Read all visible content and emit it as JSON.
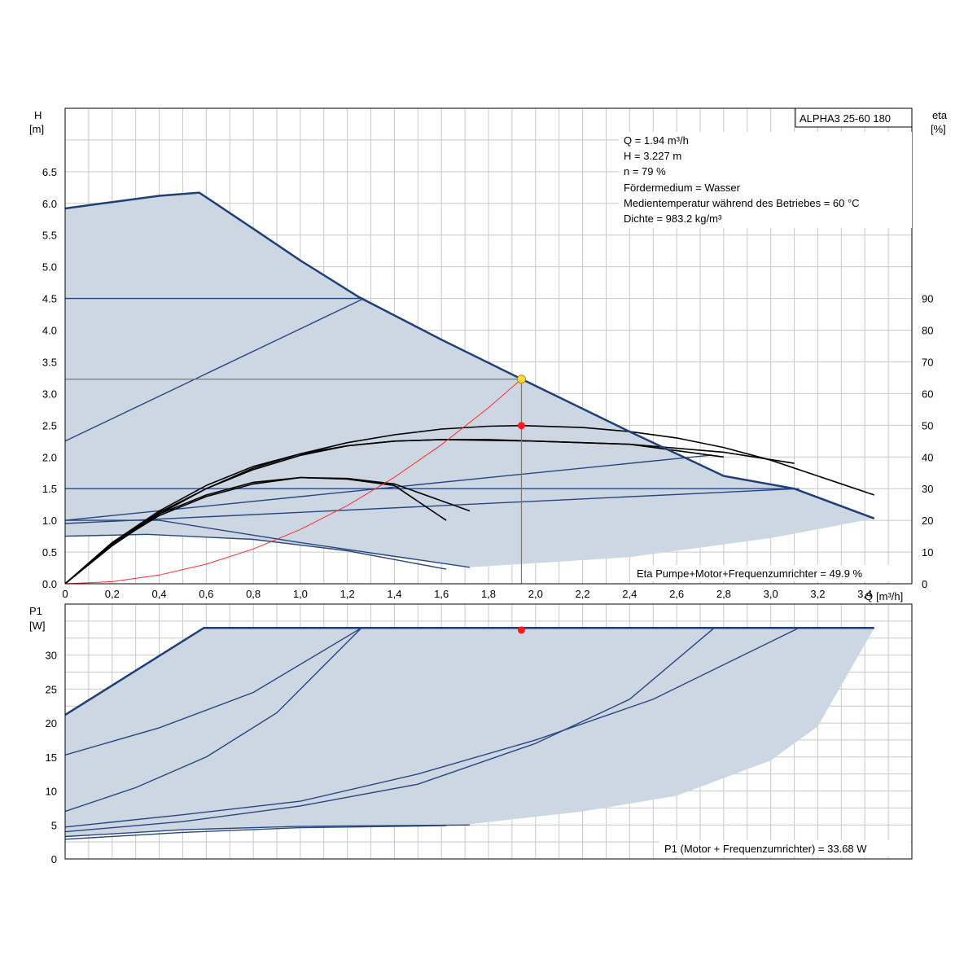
{
  "chart_data": [
    {
      "type": "line",
      "title": "",
      "model_label": "ALPHA3 25-60 180",
      "ylabel": "H",
      "yunit": "[m]",
      "y2label": "eta",
      "y2unit": "[%]",
      "xlabel": "Q",
      "xunit": "[m³/h]",
      "xlim": [
        0,
        3.6
      ],
      "ylim": [
        0,
        7.5
      ],
      "y2lim": [
        0,
        150
      ],
      "x_ticks": [
        "0",
        "0,2",
        "0,4",
        "0,6",
        "0,8",
        "1,0",
        "1,2",
        "1,4",
        "1,6",
        "1,8",
        "2,0",
        "2,2",
        "2,4",
        "2,6",
        "2,8",
        "3,0",
        "3,2",
        "3,4"
      ],
      "y_ticks": [
        "0.0",
        "0.5",
        "1.0",
        "1.5",
        "2.0",
        "2.5",
        "3.0",
        "3.5",
        "4.0",
        "4.5",
        "5.0",
        "5.5",
        "6.0",
        "6.5"
      ],
      "y2_ticks": [
        "0",
        "10",
        "20",
        "30",
        "40",
        "50",
        "60",
        "70",
        "80",
        "90"
      ],
      "grid": true,
      "info_lines": [
        "Q = 1.94 m³/h",
        "H = 3.227 m",
        "n = 79 %",
        "Fördermedium = Wasser",
        "Medientemperatur während des Betriebes = 60 °C",
        "Dichte = 983.2 kg/m³"
      ],
      "footer_text": "Eta Pumpe+Motor+Frequenzumrichter = 49.9 %",
      "operating_point": {
        "x": 1.94,
        "y": 3.227
      },
      "eta_point": {
        "x": 1.94,
        "eta": 49.9
      },
      "envelope": {
        "max_curve": [
          [
            0,
            5.92
          ],
          [
            0.2,
            6.02
          ],
          [
            0.4,
            6.12
          ],
          [
            0.57,
            6.17
          ],
          [
            0.8,
            5.6
          ],
          [
            1.0,
            5.1
          ],
          [
            1.25,
            4.52
          ],
          [
            1.6,
            3.85
          ],
          [
            1.94,
            3.23
          ],
          [
            2.4,
            2.4
          ],
          [
            2.8,
            1.7
          ],
          [
            3.1,
            1.5
          ],
          [
            3.44,
            1.03
          ]
        ],
        "min_curve": [
          [
            0,
            0.75
          ],
          [
            0.35,
            0.78
          ],
          [
            0.8,
            0.7
          ],
          [
            1.2,
            0.52
          ],
          [
            1.72,
            0.26
          ],
          [
            2.4,
            0.42
          ],
          [
            3.0,
            0.72
          ],
          [
            3.44,
            1.03
          ]
        ]
      },
      "series": [
        {
          "name": "",
          "role": "constant-pressure-max",
          "values": [
            [
              0,
              4.5
            ],
            [
              1.27,
              4.5
            ]
          ]
        },
        {
          "name": "",
          "role": "proportional-pressure-max",
          "values": [
            [
              0,
              2.25
            ],
            [
              1.27,
              4.5
            ]
          ]
        },
        {
          "name": "",
          "role": "constant-pressure-min",
          "values": [
            [
              0,
              1.5
            ],
            [
              3.12,
              1.5
            ]
          ]
        },
        {
          "name": "",
          "role": "proportional-pressure-mid",
          "values": [
            [
              0,
              1.0
            ],
            [
              2.75,
              2.03
            ]
          ]
        },
        {
          "name": "",
          "role": "proportional-pressure-low",
          "values": [
            [
              0,
              0.95
            ],
            [
              3.12,
              1.5
            ]
          ]
        },
        {
          "name": "",
          "role": "min-curve-a",
          "values": [
            [
              0,
              1.0
            ],
            [
              0.4,
              1.0
            ],
            [
              1.0,
              0.65
            ],
            [
              1.72,
              0.26
            ]
          ]
        },
        {
          "name": "",
          "role": "min-curve-b",
          "values": [
            [
              0,
              0.75
            ],
            [
              0.35,
              0.78
            ],
            [
              0.8,
              0.7
            ],
            [
              1.2,
              0.52
            ],
            [
              1.62,
              0.23
            ]
          ]
        },
        {
          "name": "",
          "role": "eta-max",
          "values": [
            [
              0,
              0
            ],
            [
              0.2,
              12
            ],
            [
              0.4,
              22
            ],
            [
              0.6,
              30
            ],
            [
              0.8,
              36.5
            ],
            [
              1.0,
              41
            ],
            [
              1.2,
              44.5
            ],
            [
              1.4,
              47
            ],
            [
              1.6,
              48.8
            ],
            [
              1.8,
              49.7
            ],
            [
              1.94,
              49.9
            ],
            [
              2.2,
              49.3
            ],
            [
              2.4,
              48
            ],
            [
              2.6,
              46
            ],
            [
              2.8,
              43
            ],
            [
              3.0,
              39
            ],
            [
              3.2,
              34
            ],
            [
              3.44,
              28
            ]
          ]
        },
        {
          "name": "",
          "role": "eta-const-max",
          "values": [
            [
              0,
              0
            ],
            [
              0.2,
              13
            ],
            [
              0.4,
              23
            ],
            [
              0.6,
              31
            ],
            [
              0.8,
              37
            ],
            [
              1.0,
              41
            ],
            [
              1.2,
              43.5
            ],
            [
              1.4,
              45
            ],
            [
              1.6,
              45.5
            ],
            [
              1.8,
              45.5
            ],
            [
              2.0,
              45
            ],
            [
              2.4,
              44
            ],
            [
              2.8,
              41.5
            ],
            [
              3.1,
              38
            ]
          ]
        },
        {
          "name": "",
          "role": "eta-const-min",
          "values": [
            [
              0,
              0
            ],
            [
              0.2,
              13
            ],
            [
              0.4,
              22
            ],
            [
              0.6,
              28
            ],
            [
              0.8,
              32
            ],
            [
              1.0,
              33.5
            ],
            [
              1.2,
              33
            ],
            [
              1.4,
              31
            ],
            [
              1.62,
              20
            ]
          ]
        },
        {
          "name": "",
          "role": "eta-prop-min",
          "values": [
            [
              0,
              0
            ],
            [
              0.2,
              12.5
            ],
            [
              0.4,
              21.5
            ],
            [
              0.6,
              27.5
            ],
            [
              0.8,
              31.5
            ],
            [
              1.0,
              33.5
            ],
            [
              1.2,
              33.2
            ],
            [
              1.4,
              31.5
            ],
            [
              1.72,
              23
            ]
          ]
        },
        {
          "name": "",
          "role": "eta-prop-mid",
          "values": [
            [
              0,
              0
            ],
            [
              0.2,
              12.5
            ],
            [
              0.4,
              22.5
            ],
            [
              0.6,
              30
            ],
            [
              0.8,
              36
            ],
            [
              1.0,
              40.5
            ],
            [
              1.2,
              43.5
            ],
            [
              1.4,
              45
            ],
            [
              1.6,
              45.5
            ],
            [
              2.0,
              45
            ],
            [
              2.4,
              44
            ],
            [
              2.8,
              40
            ]
          ]
        },
        {
          "name": "",
          "role": "system-curve",
          "values": [
            [
              0,
              0
            ],
            [
              0.2,
              0.034
            ],
            [
              0.4,
              0.137
            ],
            [
              0.6,
              0.309
            ],
            [
              0.8,
              0.549
            ],
            [
              1.0,
              0.857
            ],
            [
              1.2,
              1.234
            ],
            [
              1.4,
              1.68
            ],
            [
              1.6,
              2.194
            ],
            [
              1.8,
              2.777
            ],
            [
              1.94,
              3.227
            ]
          ]
        }
      ]
    },
    {
      "type": "line",
      "title": "",
      "ylabel": "P1",
      "yunit": "[W]",
      "xlim": [
        0,
        3.6
      ],
      "ylim": [
        0,
        37.5
      ],
      "y_ticks": [
        "0",
        "5",
        "10",
        "15",
        "20",
        "25",
        "30"
      ],
      "grid": true,
      "footer_text": "P1 (Motor + Frequenzumrichter) = 33.68 W",
      "operating_point": {
        "x": 1.94,
        "y": 33.68
      },
      "envelope": {
        "max_curve": [
          [
            0,
            21.2
          ],
          [
            0.59,
            34.0
          ],
          [
            3.44,
            34.0
          ]
        ],
        "min_curve": [
          [
            1.72,
            5.1
          ],
          [
            2.2,
            7.0
          ],
          [
            2.6,
            9.3
          ],
          [
            3.0,
            14.5
          ],
          [
            3.2,
            19.5
          ],
          [
            3.44,
            34.0
          ]
        ]
      },
      "series": [
        {
          "name": "",
          "role": "power-max",
          "values": [
            [
              0,
              21.2
            ],
            [
              0.59,
              34.0
            ],
            [
              3.44,
              34.0
            ]
          ]
        },
        {
          "name": "",
          "role": "power-pp-max",
          "values": [
            [
              0,
              15.3
            ],
            [
              0.4,
              19.3
            ],
            [
              0.8,
              24.5
            ],
            [
              1.26,
              34.0
            ]
          ]
        },
        {
          "name": "",
          "role": "power-cp-max",
          "values": [
            [
              0,
              7.0
            ],
            [
              0.3,
              10.5
            ],
            [
              0.6,
              15.0
            ],
            [
              0.9,
              21.5
            ],
            [
              1.26,
              34.0
            ]
          ]
        },
        {
          "name": "",
          "role": "power-pp-low",
          "values": [
            [
              0,
              4.0
            ],
            [
              0.5,
              5.5
            ],
            [
              1.0,
              7.8
            ],
            [
              1.5,
              11.0
            ],
            [
              2.0,
              17.0
            ],
            [
              2.4,
              23.5
            ],
            [
              2.76,
              34.0
            ]
          ]
        },
        {
          "name": "",
          "role": "power-cp-min",
          "values": [
            [
              0,
              4.7
            ],
            [
              0.5,
              6.5
            ],
            [
              1.0,
              8.5
            ],
            [
              1.5,
              12.5
            ],
            [
              2.0,
              17.5
            ],
            [
              2.5,
              23.5
            ],
            [
              3.12,
              34.0
            ]
          ]
        },
        {
          "name": "",
          "role": "power-min-a",
          "values": [
            [
              0,
              3.3
            ],
            [
              0.5,
              4.3
            ],
            [
              1.0,
              4.8
            ],
            [
              1.72,
              5.0
            ]
          ]
        },
        {
          "name": "",
          "role": "power-min-b",
          "values": [
            [
              0,
              2.9
            ],
            [
              0.5,
              3.9
            ],
            [
              1.0,
              4.6
            ],
            [
              1.62,
              4.9
            ]
          ]
        }
      ]
    }
  ]
}
